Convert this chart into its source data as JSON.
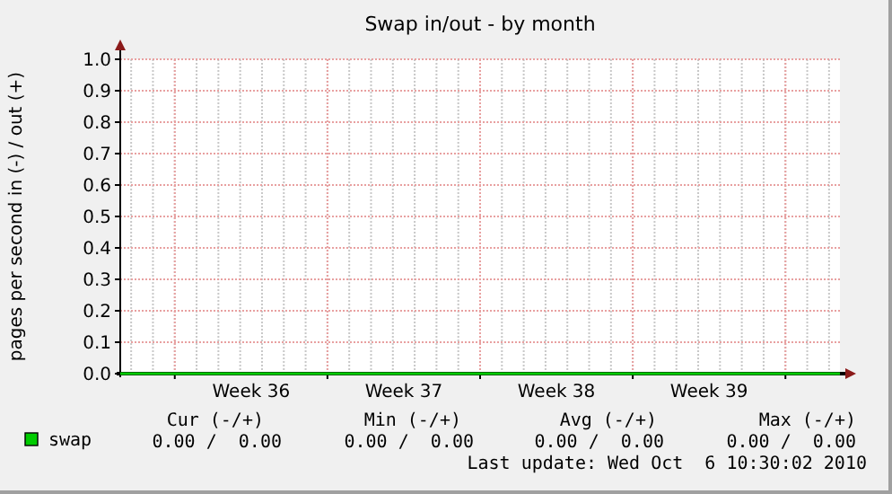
{
  "chart_data": {
    "type": "line",
    "title": "Swap in/out - by month",
    "ylabel": "pages per second in (-) / out (+)",
    "x": [
      "2010-09-03T12:00",
      "2010-09-06",
      "2010-09-13",
      "2010-09-20",
      "2010-09-27",
      "2010-10-04",
      "2010-10-06T12:00"
    ],
    "series": [
      {
        "name": "swap",
        "color": "#00cc00",
        "values": [
          0,
          0,
          0,
          0,
          0,
          0,
          0
        ]
      }
    ],
    "xlim": [
      "2010-09-03T12:00",
      "2010-10-06T12:00"
    ],
    "xticks": [
      {
        "value": "2010-09-06",
        "label": null
      },
      {
        "value": "2010-09-09T12:00",
        "label": "Week 36"
      },
      {
        "value": "2010-09-13",
        "label": null
      },
      {
        "value": "2010-09-16T12:00",
        "label": "Week 37"
      },
      {
        "value": "2010-09-20",
        "label": null
      },
      {
        "value": "2010-09-23T12:00",
        "label": "Week 38"
      },
      {
        "value": "2010-09-27",
        "label": null
      },
      {
        "value": "2010-09-30T12:00",
        "label": "Week 39"
      },
      {
        "value": "2010-10-04",
        "label": null
      }
    ],
    "ylim": [
      0,
      1.0
    ],
    "yticks": [
      {
        "value": 0,
        "label": "0.0"
      },
      {
        "value": 0.1,
        "label": "0.1"
      },
      {
        "value": 0.2,
        "label": "0.2"
      },
      {
        "value": 0.3,
        "label": "0.3"
      },
      {
        "value": 0.4,
        "label": "0.4"
      },
      {
        "value": 0.5,
        "label": "0.5"
      },
      {
        "value": 0.6,
        "label": "0.6"
      },
      {
        "value": 0.7,
        "label": "0.7"
      },
      {
        "value": 0.8,
        "label": "0.8"
      },
      {
        "value": 0.9,
        "label": "0.9"
      },
      {
        "value": 1.0,
        "label": "1.0"
      }
    ],
    "grid": true,
    "legend": "bottom left",
    "annotations": [
      "Cur (-/+)",
      "Min (-/+)",
      "Avg (-/+)",
      "Max (-/+)",
      "0.00 /  0.00",
      "0.00 /  0.00",
      "0.00 /  0.00",
      "0.00 /  0.00",
      "Last update: Wed Oct  6 10:30:02 2010"
    ]
  }
}
